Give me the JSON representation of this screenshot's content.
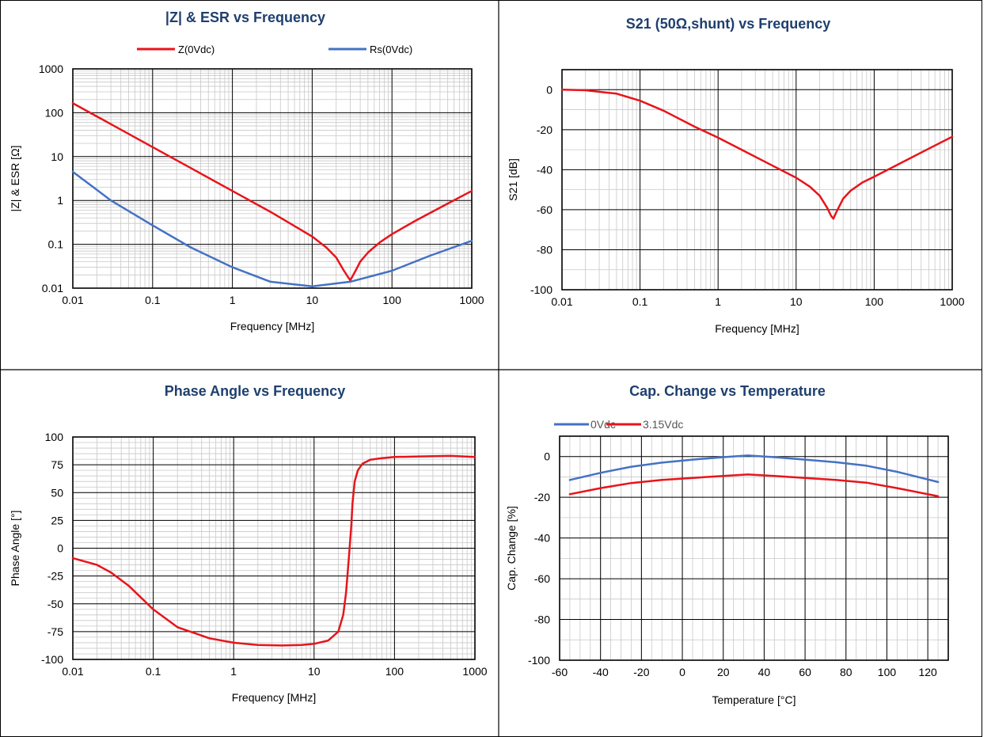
{
  "colors": {
    "red": "#e8141b",
    "blue": "#4472c4",
    "title": "#1f3f6e",
    "major_grid": "#000000",
    "minor_grid": "#c8c8c8"
  },
  "chart_data": [
    {
      "type": "line",
      "title": "|Z| & ESR vs Frequency",
      "xlabel": "Frequency [MHz]",
      "ylabel": "|Z| & ESR [Ω]",
      "xscale": "log",
      "yscale": "log",
      "xlim": [
        0.01,
        1000
      ],
      "ylim": [
        0.01,
        1000
      ],
      "xticks": [
        "0.01",
        "0.1",
        "1",
        "10",
        "100",
        "1000"
      ],
      "yticks": [
        "0.01",
        "0.1",
        "1",
        "10",
        "100",
        "1000"
      ],
      "legend_position": "top",
      "series": [
        {
          "name": "Z(0Vdc)",
          "color": "red",
          "x": [
            0.01,
            0.03,
            0.1,
            0.3,
            1,
            3,
            10,
            15,
            20,
            25,
            30,
            35,
            40,
            50,
            70,
            100,
            200,
            500,
            1000
          ],
          "y": [
            165,
            55,
            16.5,
            5.5,
            1.65,
            0.55,
            0.15,
            0.085,
            0.05,
            0.025,
            0.015,
            0.025,
            0.04,
            0.065,
            0.11,
            0.17,
            0.35,
            0.85,
            1.65
          ]
        },
        {
          "name": "Rs(0Vdc)",
          "color": "blue",
          "x": [
            0.01,
            0.03,
            0.1,
            0.3,
            1,
            3,
            10,
            30,
            100,
            300,
            1000
          ],
          "y": [
            4.5,
            1.0,
            0.27,
            0.085,
            0.03,
            0.014,
            0.011,
            0.014,
            0.025,
            0.055,
            0.12
          ]
        }
      ]
    },
    {
      "type": "line",
      "title": "S21 (50Ω,shunt) vs Frequency",
      "xlabel": "Frequency [MHz]",
      "ylabel": "S21 [dB]",
      "xscale": "log",
      "xlim": [
        0.01,
        1000
      ],
      "ylim": [
        -100,
        10
      ],
      "xticks": [
        "0.01",
        "0.1",
        "1",
        "10",
        "100",
        "1000"
      ],
      "yticks": [
        "0",
        "-20",
        "-40",
        "-60",
        "-80",
        "-100"
      ],
      "series": [
        {
          "color": "red",
          "x": [
            0.01,
            0.02,
            0.05,
            0.1,
            0.2,
            0.5,
            1,
            2,
            5,
            10,
            15,
            20,
            25,
            28,
            30,
            33,
            40,
            50,
            70,
            100,
            200,
            500,
            1000
          ],
          "y": [
            0,
            -0.3,
            -2,
            -5.5,
            -10.5,
            -18.5,
            -24,
            -30,
            -38,
            -44,
            -48.5,
            -53,
            -59,
            -63,
            -64.5,
            -61,
            -54.5,
            -50.5,
            -46.5,
            -43.5,
            -37.5,
            -29.5,
            -23.5
          ]
        }
      ]
    },
    {
      "type": "line",
      "title": "Phase Angle vs Frequency",
      "xlabel": "Frequency [MHz]",
      "ylabel": "Phase Angle [°]",
      "xscale": "log",
      "xlim": [
        0.01,
        1000
      ],
      "ylim": [
        -100,
        100
      ],
      "xticks": [
        "0.01",
        "0.1",
        "1",
        "10",
        "100",
        "1000"
      ],
      "yticks": [
        "100",
        "75",
        "50",
        "25",
        "0",
        "-25",
        "-50",
        "-75",
        "-100"
      ],
      "series": [
        {
          "color": "red",
          "x": [
            0.01,
            0.02,
            0.03,
            0.05,
            0.1,
            0.2,
            0.5,
            1,
            2,
            4,
            7,
            10,
            15,
            20,
            23,
            25,
            27,
            29,
            30,
            32,
            35,
            40,
            50,
            70,
            100,
            200,
            500,
            1000
          ],
          "y": [
            -9,
            -15,
            -22,
            -34,
            -55,
            -71,
            -81,
            -85,
            -87,
            -87.5,
            -87,
            -86,
            -83,
            -75,
            -60,
            -40,
            -10,
            20,
            40,
            60,
            70,
            76,
            79.5,
            81,
            82,
            82.5,
            83,
            82
          ]
        }
      ]
    },
    {
      "type": "line",
      "title": "Cap. Change vs Temperature",
      "xlabel": "Temperature [°C]",
      "ylabel": "Cap. Change [%]",
      "xlim": [
        -60,
        130
      ],
      "ylim": [
        -100,
        10
      ],
      "xticks": [
        "-60",
        "-40",
        "-20",
        "0",
        "20",
        "40",
        "60",
        "80",
        "100",
        "120"
      ],
      "yticks": [
        "0",
        "-20",
        "-40",
        "-60",
        "-80",
        "-100"
      ],
      "legend_position": "top-left",
      "series": [
        {
          "name": "0Vdc",
          "color": "blue",
          "x": [
            -55,
            -40,
            -25,
            -10,
            5,
            20,
            32,
            45,
            60,
            75,
            90,
            105,
            125
          ],
          "y": [
            -11.5,
            -8,
            -5,
            -3,
            -1.5,
            -0.3,
            0.5,
            -0.3,
            -1.5,
            -2.8,
            -4.5,
            -7.5,
            -12.5
          ]
        },
        {
          "name": "3.15Vdc",
          "color": "red",
          "x": [
            -55,
            -40,
            -25,
            -10,
            5,
            20,
            32,
            45,
            60,
            75,
            90,
            105,
            125
          ],
          "y": [
            -18.5,
            -15.5,
            -13,
            -11.5,
            -10.5,
            -9.5,
            -8.8,
            -9.5,
            -10.5,
            -11.5,
            -12.8,
            -15.5,
            -19.5
          ]
        }
      ]
    }
  ]
}
